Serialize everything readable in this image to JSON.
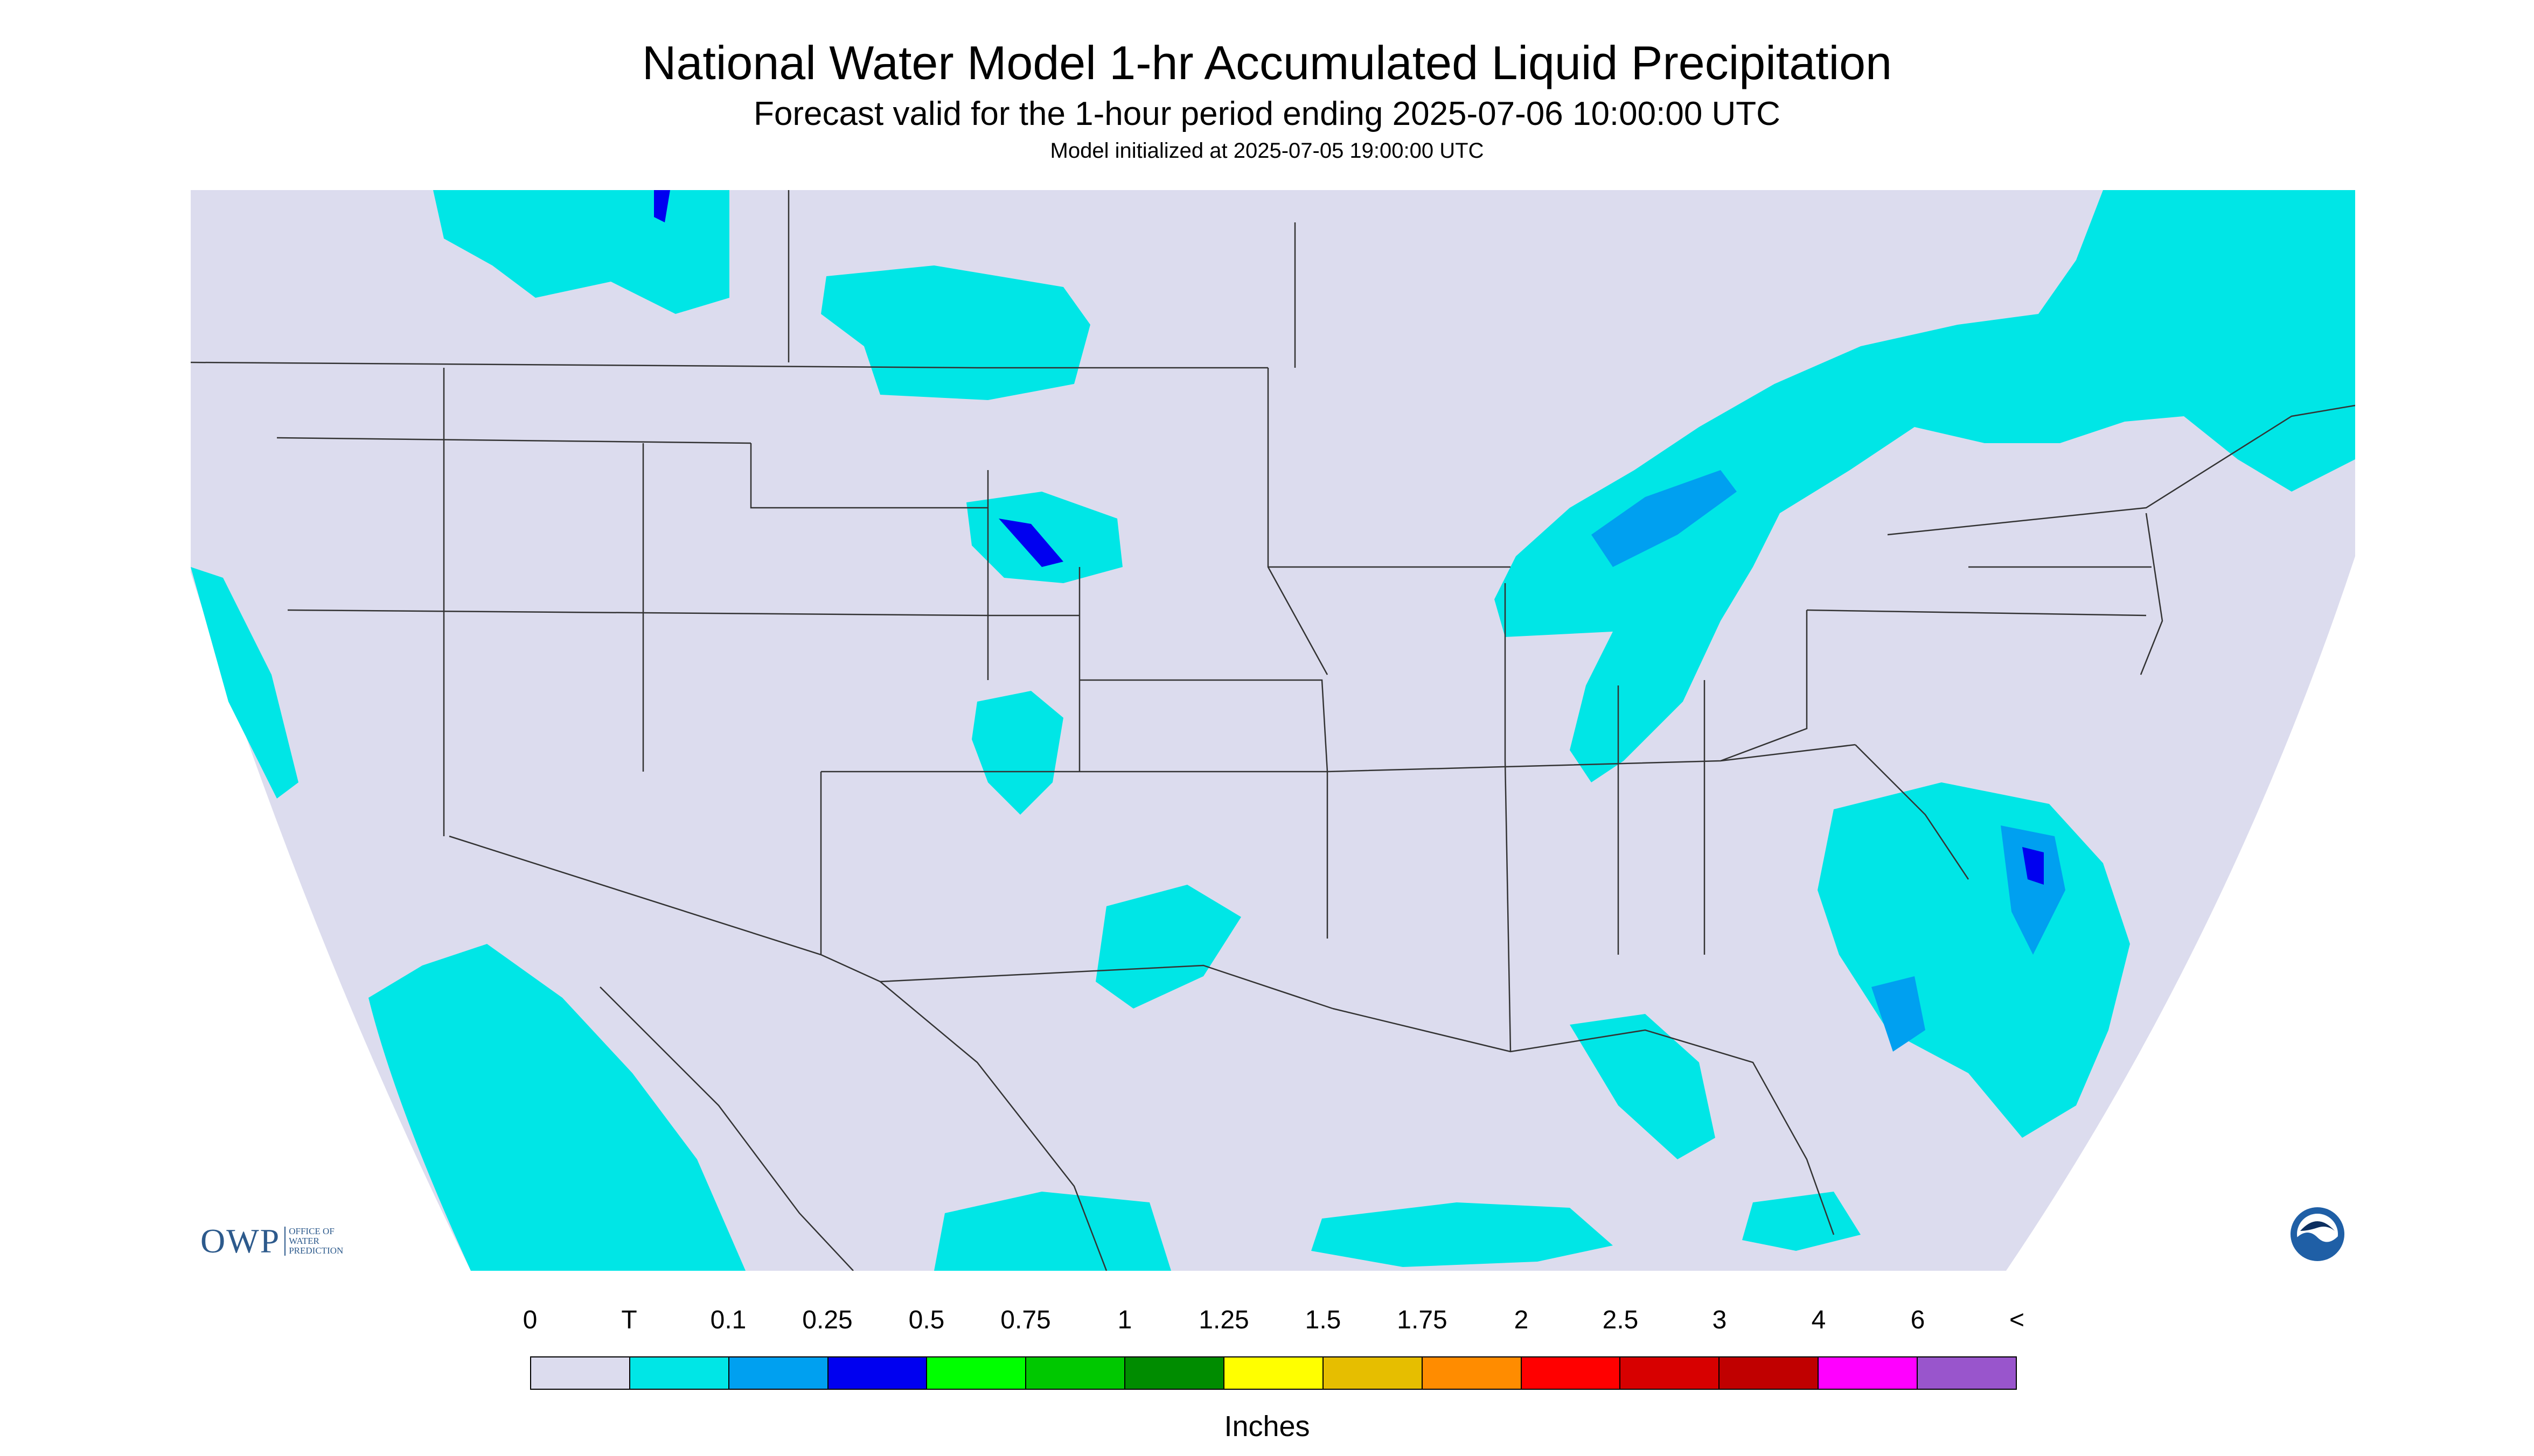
{
  "header": {
    "title": "National Water Model 1-hr Accumulated Liquid Precipitation",
    "subtitle": "Forecast valid for the 1-hour period ending 2025-07-06 10:00:00 UTC",
    "init": "Model initialized at 2025-07-05 19:00:00 UTC"
  },
  "legend": {
    "labels": [
      "0",
      "T",
      "0.1",
      "0.25",
      "0.5",
      "0.75",
      "1",
      "1.25",
      "1.5",
      "1.75",
      "2",
      "2.5",
      "3",
      "4",
      "6",
      "<"
    ],
    "colors": [
      "#dcdcee",
      "#00e6e6",
      "#00a0f0",
      "#0000f0",
      "#00ff00",
      "#00c800",
      "#008c00",
      "#ffff00",
      "#e6be00",
      "#ff8c00",
      "#ff0000",
      "#d70000",
      "#c00000",
      "#ff00ff",
      "#9955cc"
    ],
    "units": "Inches"
  },
  "map": {
    "background": "#dcdcee",
    "precip_light": "#00e6e6",
    "precip_med": "#00a0f0",
    "precip_heavy": "#0000f0"
  },
  "logos": {
    "owp_abbr": "OWP",
    "owp_full": [
      "OFFICE OF",
      "WATER",
      "PREDICTION"
    ],
    "noaa": "NOAA"
  }
}
